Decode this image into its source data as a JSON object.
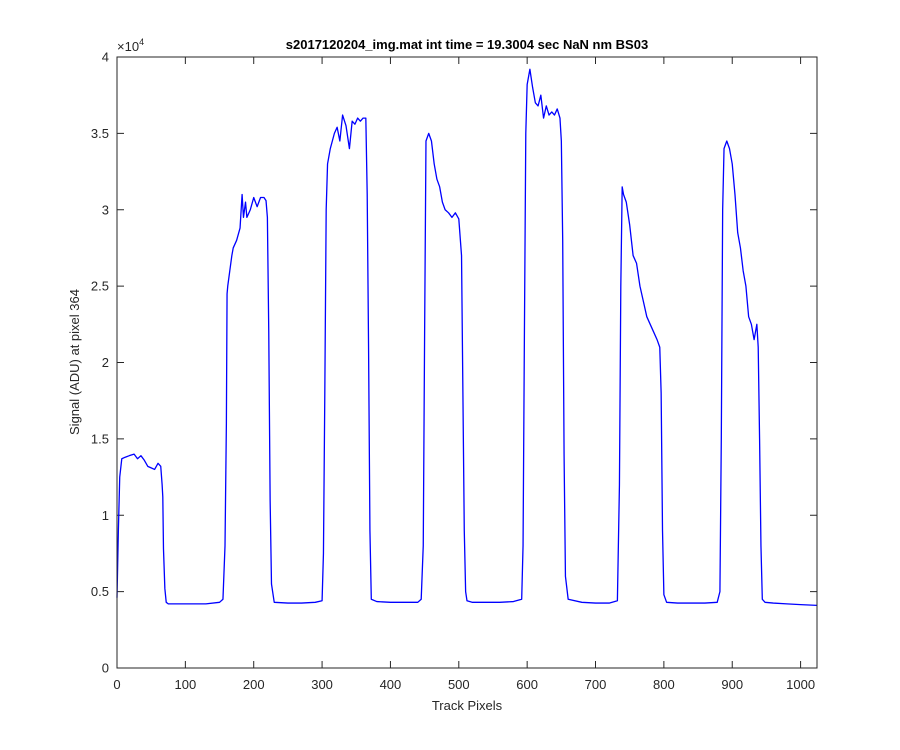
{
  "chart_data": {
    "type": "line",
    "title": "s2017120204_img.mat int time = 19.3004 sec  NaN nm BS03",
    "xlabel": "Track Pixels",
    "ylabel": "Signal (ADU) at pixel 364",
    "xlim": [
      0,
      1024
    ],
    "ylim": [
      0,
      40000
    ],
    "y_exponent_label": "×10",
    "y_exponent_power": "4",
    "xticks": [
      0,
      100,
      200,
      300,
      400,
      500,
      600,
      700,
      800,
      900,
      1000
    ],
    "xtick_labels": [
      "0",
      "100",
      "200",
      "300",
      "400",
      "500",
      "600",
      "700",
      "800",
      "900",
      "1000"
    ],
    "yticks": [
      0,
      5000,
      10000,
      15000,
      20000,
      25000,
      30000,
      35000,
      40000
    ],
    "ytick_labels": [
      "0",
      "0.5",
      "1",
      "1.5",
      "2",
      "2.5",
      "3",
      "3.5",
      "4"
    ],
    "grid": false,
    "line_color": "#0000ff",
    "series": [
      {
        "x": [
          0,
          2,
          4,
          7,
          12,
          18,
          25,
          30,
          35,
          40,
          45,
          50,
          55,
          60,
          64,
          66,
          67,
          68,
          69,
          70,
          72,
          75,
          90,
          110,
          130,
          150,
          155,
          158,
          160,
          161,
          162,
          165,
          168,
          170,
          175,
          180,
          183,
          185,
          188,
          190,
          195,
          200,
          205,
          210,
          215,
          218,
          220,
          222,
          224,
          226,
          230,
          250,
          270,
          290,
          300,
          302,
          304,
          306,
          308,
          312,
          318,
          322,
          326,
          330,
          335,
          340,
          344,
          348,
          352,
          356,
          360,
          364,
          366,
          368,
          370,
          372,
          380,
          400,
          420,
          440,
          445,
          448,
          450,
          452,
          456,
          460,
          464,
          468,
          472,
          476,
          480,
          485,
          490,
          495,
          500,
          504,
          506,
          508,
          510,
          512,
          520,
          540,
          560,
          580,
          592,
          594,
          596,
          598,
          600,
          604,
          608,
          612,
          616,
          620,
          624,
          628,
          632,
          636,
          640,
          644,
          648,
          650,
          652,
          654,
          656,
          660,
          680,
          700,
          720,
          732,
          735,
          737,
          739,
          741,
          745,
          750,
          755,
          760,
          765,
          770,
          775,
          780,
          785,
          790,
          794,
          796,
          798,
          800,
          804,
          820,
          840,
          860,
          878,
          882,
          884,
          886,
          888,
          892,
          896,
          900,
          904,
          908,
          912,
          916,
          920,
          924,
          928,
          932,
          936,
          938,
          940,
          942,
          944,
          948,
          960,
          980,
          1000,
          1024
        ],
        "y": [
          4600,
          9000,
          12500,
          13700,
          13800,
          13900,
          14000,
          13700,
          13900,
          13600,
          13200,
          13100,
          13000,
          13400,
          13200,
          12000,
          11200,
          7800,
          6500,
          5200,
          4300,
          4200,
          4200,
          4200,
          4200,
          4300,
          4500,
          8000,
          16000,
          24500,
          25000,
          26000,
          27000,
          27500,
          28000,
          28800,
          31000,
          29500,
          30500,
          29500,
          30000,
          30800,
          30200,
          30800,
          30800,
          30600,
          29500,
          22000,
          11000,
          5500,
          4300,
          4250,
          4250,
          4300,
          4400,
          7500,
          18000,
          30000,
          33000,
          34000,
          35000,
          35400,
          34500,
          36200,
          35500,
          34000,
          35800,
          35600,
          36000,
          35800,
          36000,
          36000,
          31000,
          21000,
          9000,
          4500,
          4350,
          4300,
          4300,
          4300,
          4500,
          8000,
          22000,
          34500,
          35000,
          34500,
          33000,
          32000,
          31500,
          30500,
          30000,
          29800,
          29500,
          29800,
          29400,
          27000,
          18000,
          9000,
          5000,
          4400,
          4300,
          4300,
          4300,
          4350,
          4500,
          8000,
          22000,
          35000,
          38200,
          39200,
          38000,
          37000,
          36800,
          37500,
          36000,
          36800,
          36200,
          36400,
          36200,
          36600,
          36000,
          34500,
          28000,
          14000,
          6000,
          4500,
          4300,
          4250,
          4250,
          4400,
          12000,
          25000,
          31500,
          31000,
          30500,
          29000,
          27000,
          26500,
          25000,
          24000,
          23000,
          22500,
          22000,
          21500,
          21000,
          18000,
          9000,
          4800,
          4300,
          4250,
          4250,
          4250,
          4300,
          5000,
          15000,
          30000,
          34000,
          34500,
          34000,
          33000,
          31000,
          28500,
          27500,
          26000,
          25000,
          23000,
          22500,
          21500,
          22500,
          21000,
          15000,
          8000,
          4500,
          4300,
          4250,
          4200,
          4150,
          4100
        ]
      }
    ]
  }
}
